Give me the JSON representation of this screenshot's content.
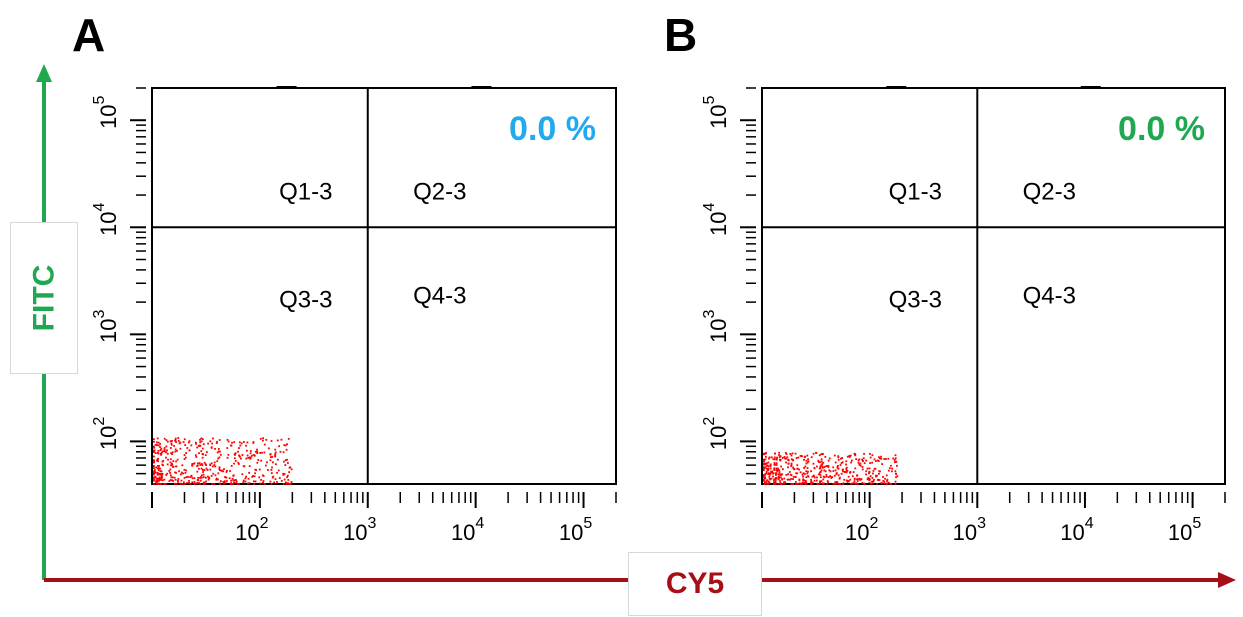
{
  "colors": {
    "fitc_arrow": "#1fa84f",
    "cy5_arrow": "#a50f15",
    "dots": "#ff0000",
    "percent_a": "#22aaee",
    "percent_b": "#1fa84f"
  },
  "axis_titles": {
    "y": "FITC",
    "x": "CY5"
  },
  "chart_data": [
    {
      "type": "scatter",
      "panel_label": "A",
      "percent_label": "0.0 %",
      "quadrants": {
        "q1": "Q1-3",
        "q2": "Q2-3",
        "q3": "Q3-3",
        "q4": "Q4-3"
      },
      "x_scale": "log",
      "y_scale": "log",
      "xlim": [
        10,
        200000
      ],
      "ylim": [
        40,
        200000
      ],
      "x_gate": 1000,
      "y_gate": 10000,
      "x_ticks": [
        {
          "base": "10",
          "exp": "2"
        },
        {
          "base": "10",
          "exp": "3"
        },
        {
          "base": "10",
          "exp": "4"
        },
        {
          "base": "10",
          "exp": "5"
        }
      ],
      "y_ticks": [
        {
          "base": "10",
          "exp": "2"
        },
        {
          "base": "10",
          "exp": "3"
        },
        {
          "base": "10",
          "exp": "4"
        },
        {
          "base": "10",
          "exp": "5"
        }
      ],
      "population": {
        "x_range": [
          10,
          200
        ],
        "y_range": [
          40,
          110
        ]
      }
    },
    {
      "type": "scatter",
      "panel_label": "B",
      "percent_label": "0.0 %",
      "quadrants": {
        "q1": "Q1-3",
        "q2": "Q2-3",
        "q3": "Q3-3",
        "q4": "Q4-3"
      },
      "x_scale": "log",
      "y_scale": "log",
      "xlim": [
        10,
        200000
      ],
      "ylim": [
        40,
        200000
      ],
      "x_gate": 1000,
      "y_gate": 10000,
      "x_ticks": [
        {
          "base": "10",
          "exp": "2"
        },
        {
          "base": "10",
          "exp": "3"
        },
        {
          "base": "10",
          "exp": "4"
        },
        {
          "base": "10",
          "exp": "5"
        }
      ],
      "y_ticks": [
        {
          "base": "10",
          "exp": "2"
        },
        {
          "base": "10",
          "exp": "3"
        },
        {
          "base": "10",
          "exp": "4"
        },
        {
          "base": "10",
          "exp": "5"
        }
      ],
      "population": {
        "x_range": [
          10,
          180
        ],
        "y_range": [
          40,
          80
        ]
      }
    }
  ]
}
